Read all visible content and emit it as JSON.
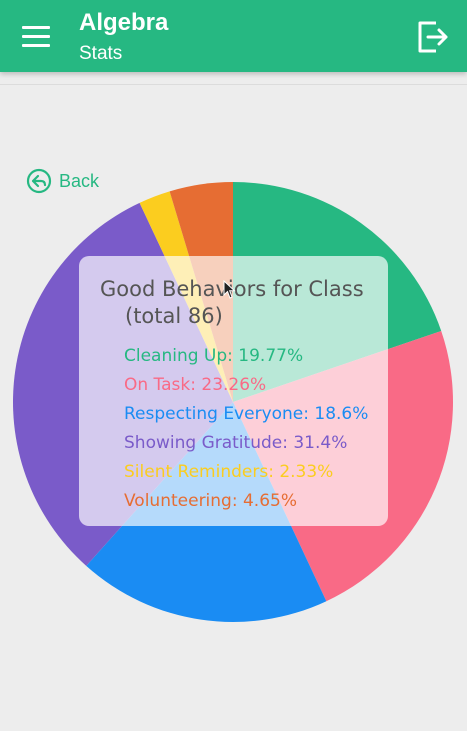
{
  "header": {
    "title": "Algebra",
    "subtitle": "Stats"
  },
  "nav": {
    "back_label": "Back"
  },
  "chart_card": {
    "title_line1": "Good Behaviors for Class",
    "title_line2": "(total 86)"
  },
  "chart_data": {
    "type": "pie",
    "title": "Good Behaviors for Class",
    "total": 86,
    "slices": [
      {
        "label": "Cleaning Up",
        "percent": 19.77,
        "text": "Cleaning Up: 19.77%",
        "color": "#26b882"
      },
      {
        "label": "On Task",
        "percent": 23.26,
        "text": "On Task: 23.26%",
        "color": "#f96a86"
      },
      {
        "label": "Respecting Everyone",
        "percent": 18.6,
        "text": "Respecting Everyone: 18.6%",
        "color": "#1a8cf3"
      },
      {
        "label": "Showing Gratitude",
        "percent": 31.4,
        "text": "Showing Gratitude: 31.4%",
        "color": "#7a5bc9"
      },
      {
        "label": "Silent Reminders",
        "percent": 2.33,
        "text": "Silent Reminders: 2.33%",
        "color": "#fbcd1f"
      },
      {
        "label": "Volunteering",
        "percent": 4.65,
        "text": "Volunteering: 4.65%",
        "color": "#e66d33"
      }
    ]
  },
  "icons": {
    "menu": "hamburger-menu-icon",
    "logout": "logout-icon",
    "back": "back-arrow-icon"
  }
}
